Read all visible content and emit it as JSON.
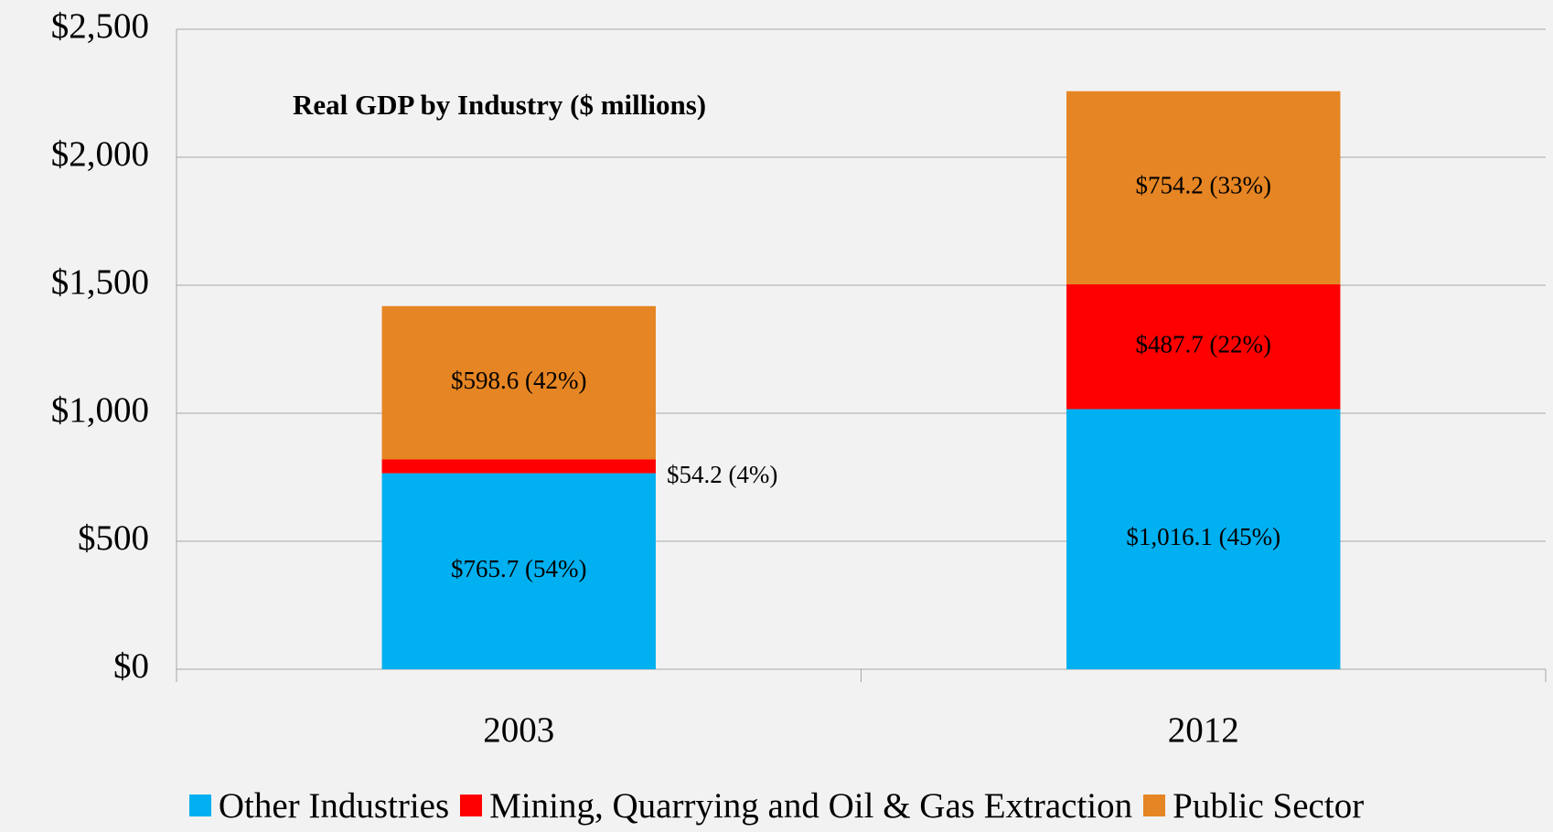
{
  "chart_data": {
    "type": "stacked_bar",
    "title": "Real GDP by Industry ($ millions)",
    "categories": [
      "2003",
      "2012"
    ],
    "series": [
      {
        "name": "Other Industries",
        "color": "#00b0f0",
        "values": [
          765.7,
          1016.1
        ],
        "value_labels": [
          "$765.7 (54%)",
          "$1,016.1 (45%)"
        ]
      },
      {
        "name": "Mining, Quarrying and Oil & Gas Extraction",
        "color": "#ff0000",
        "values": [
          54.2,
          487.7
        ],
        "value_labels": [
          "$54.2 (4%)",
          "$487.7 (22%)"
        ]
      },
      {
        "name": "Public Sector",
        "color": "#e68523",
        "values": [
          598.6,
          754.2
        ],
        "value_labels": [
          "$598.6 (42%)",
          "$754.2 (33%)"
        ]
      }
    ],
    "ylim": [
      0,
      2500
    ],
    "yticks": [
      {
        "value": 0,
        "label": "$0"
      },
      {
        "value": 500,
        "label": "$500"
      },
      {
        "value": 1000,
        "label": "$1,000"
      },
      {
        "value": 1500,
        "label": "$1,500"
      },
      {
        "value": 2000,
        "label": "$2,000"
      },
      {
        "value": 2500,
        "label": "$2,500"
      }
    ],
    "grid": true,
    "legend": "bottom"
  }
}
